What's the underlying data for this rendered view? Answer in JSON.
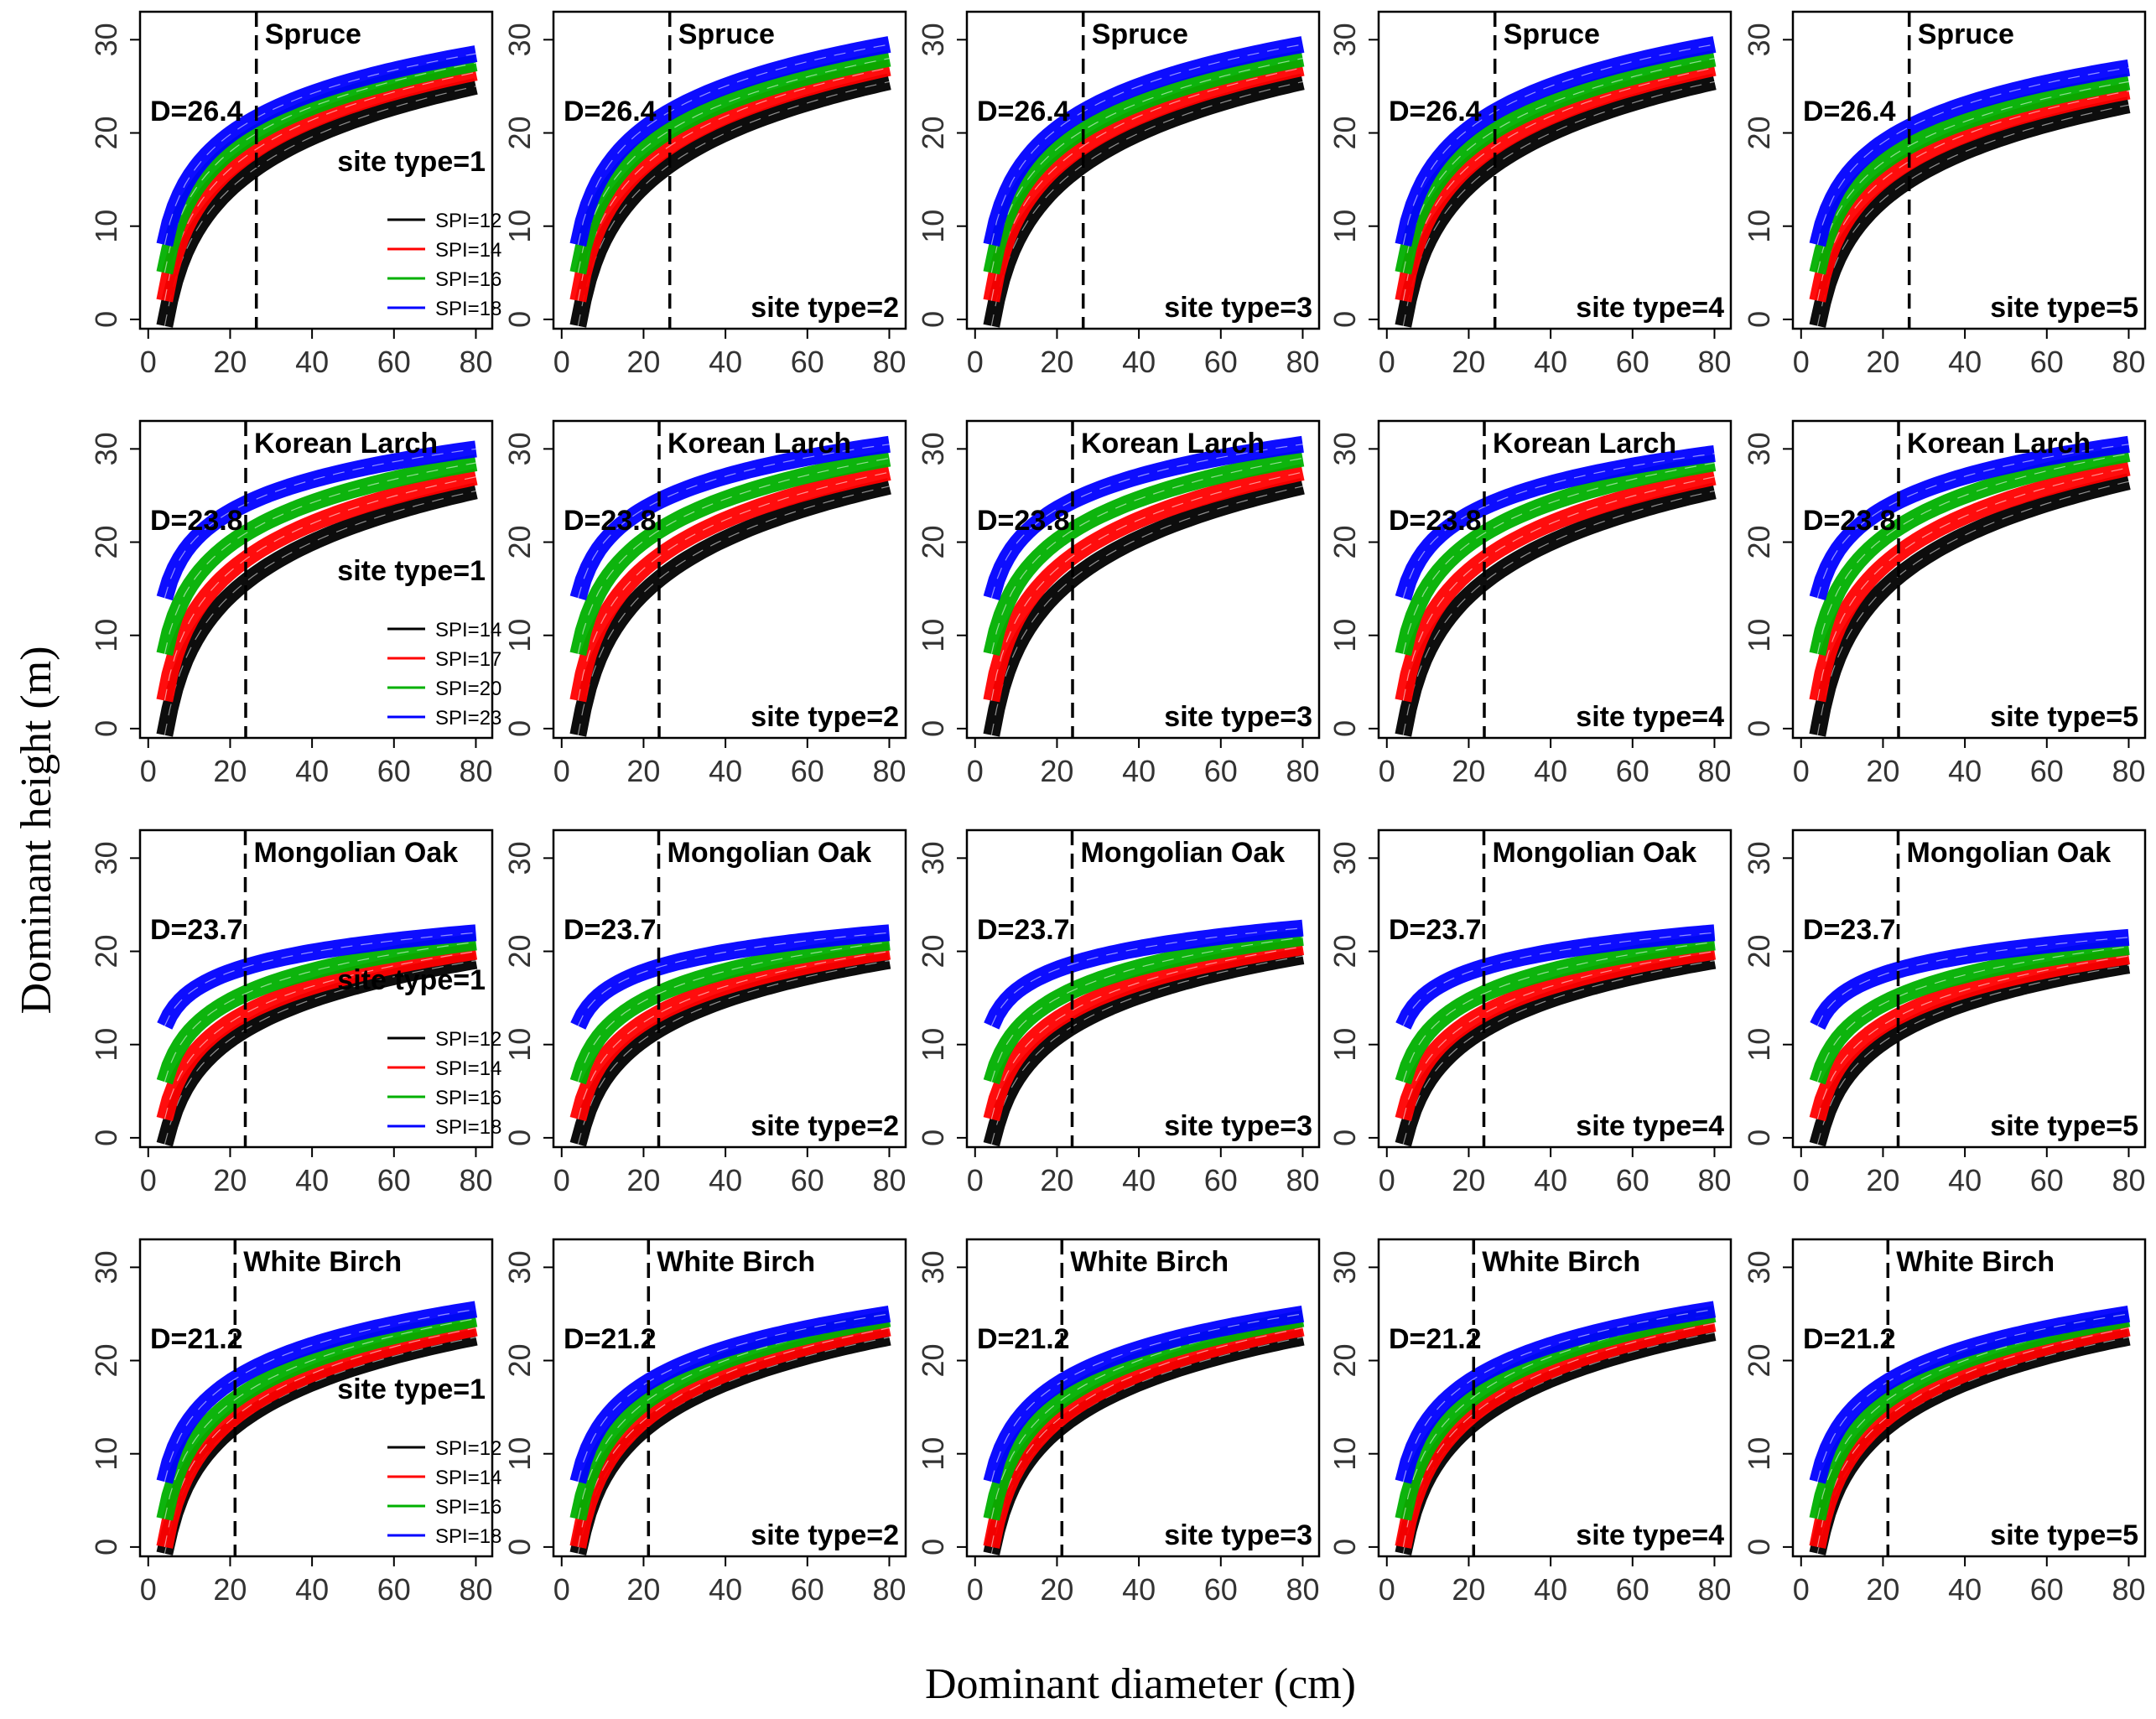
{
  "figure": {
    "ylabel": "Dominant height (m)",
    "xlabel": "Dominant diameter (cm)"
  },
  "colors": {
    "spi": [
      "#000000",
      "#ff0000",
      "#00b000",
      "#0000ff"
    ],
    "frame": "#000000",
    "tick_text": "#333333"
  },
  "chart_data": {
    "type": "line",
    "x_ticks": [
      0,
      20,
      40,
      60,
      80
    ],
    "y_ticks": [
      0,
      10,
      20,
      30
    ],
    "xlim": [
      -2,
      84
    ],
    "ylim": [
      -1,
      33
    ],
    "x_range": [
      4,
      80
    ],
    "site_type_labels": [
      "site type=1",
      "site type=2",
      "site type=3",
      "site type=4",
      "site type=5"
    ],
    "species": [
      {
        "name": "Spruce",
        "d_label": "D=26.4",
        "threshold": 26.4,
        "legend": [
          "SPI=12",
          "SPI=14",
          "SPI=16",
          "SPI=18"
        ],
        "start_values": [
          -1,
          2,
          5,
          8
        ],
        "end_values": [
          [
            25,
            26.5,
            27.5,
            28.5
          ],
          [
            25.5,
            27,
            28,
            29.5
          ],
          [
            25.5,
            27,
            28,
            29.5
          ],
          [
            25.5,
            27,
            28,
            29.5
          ],
          [
            23,
            24.5,
            25.5,
            27
          ]
        ]
      },
      {
        "name": "Korean Larch",
        "d_label": "D=23.8",
        "threshold": 23.8,
        "legend": [
          "SPI=14",
          "SPI=17",
          "SPI=20",
          "SPI=23"
        ],
        "start_values": [
          -1,
          3,
          8,
          14
        ],
        "end_values": [
          [
            25.5,
            27,
            28.5,
            30
          ],
          [
            26,
            27.5,
            29,
            30.5
          ],
          [
            26,
            27.5,
            29,
            30.5
          ],
          [
            25.5,
            27,
            28.5,
            29.5
          ],
          [
            26.5,
            28,
            29.5,
            30.5
          ]
        ]
      },
      {
        "name": "Mongolian Oak",
        "d_label": "D=23.7",
        "threshold": 23.7,
        "legend": [
          "SPI=12",
          "SPI=14",
          "SPI=16",
          "SPI=18"
        ],
        "start_values": [
          -1,
          2,
          6,
          12
        ],
        "end_values": [
          [
            19,
            20,
            21,
            22
          ],
          [
            19,
            20,
            21,
            22
          ],
          [
            19.5,
            20.5,
            21.5,
            22.5
          ],
          [
            19,
            20,
            21,
            22
          ],
          [
            18.5,
            19.5,
            20.5,
            21.5
          ]
        ]
      },
      {
        "name": "White Birch",
        "d_label": "D=21.2",
        "threshold": 21.2,
        "legend": [
          "SPI=12",
          "SPI=14",
          "SPI=16",
          "SPI=18"
        ],
        "start_values": [
          -1,
          0,
          3,
          7
        ],
        "end_values": [
          [
            22.5,
            23.5,
            24.5,
            25.5
          ],
          [
            22.5,
            23.5,
            24.5,
            25
          ],
          [
            22.5,
            23.5,
            24.5,
            25
          ],
          [
            23,
            24,
            25,
            25.5
          ],
          [
            22.5,
            23.5,
            24.5,
            25
          ]
        ]
      }
    ]
  }
}
